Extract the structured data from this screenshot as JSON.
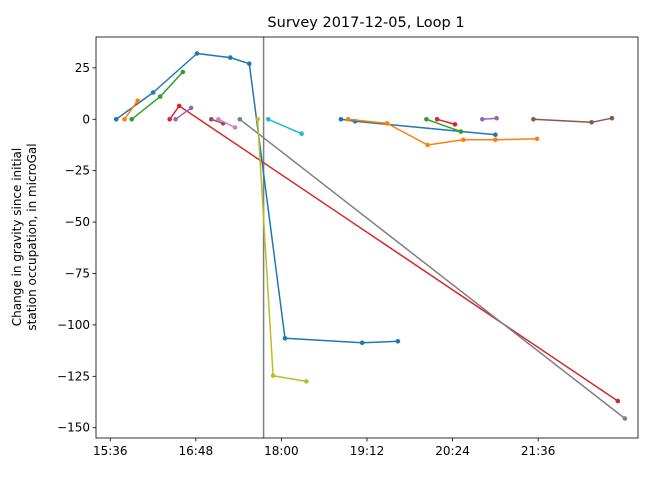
{
  "chart_data": {
    "type": "line",
    "title": "Survey 2017-12-05, Loop 1",
    "xlabel": "",
    "ylabel_lines": [
      "Change in gravity since initial",
      "station occupation, in microGal"
    ],
    "x_unit": "time of day (HH:MM)",
    "xlim": [
      "15:24",
      "23:00"
    ],
    "ylim": [
      -155,
      40
    ],
    "x_ticks": [
      "15:36",
      "16:48",
      "18:00",
      "19:12",
      "20:24",
      "21:36"
    ],
    "y_ticks": [
      25,
      0,
      -25,
      -50,
      -75,
      -100,
      -125,
      -150
    ],
    "grid": false,
    "legend": "none",
    "vertical_line": {
      "x": "17:45",
      "color": "#7f7f7f"
    },
    "series": [
      {
        "color": "#1f77b4",
        "points": [
          [
            "15:41",
            0
          ],
          [
            "16:12",
            13
          ],
          [
            "16:49",
            32
          ],
          [
            "17:17",
            30
          ],
          [
            "17:33",
            27
          ],
          [
            "18:03",
            -106.5
          ],
          [
            "19:08",
            -108.7
          ],
          [
            "19:38",
            -108
          ]
        ]
      },
      {
        "color": "#ff7f0e",
        "points": [
          [
            "15:48",
            0
          ],
          [
            "15:59",
            9
          ]
        ]
      },
      {
        "color": "#2ca02c",
        "points": [
          [
            "15:54",
            0
          ],
          [
            "16:18",
            11
          ],
          [
            "16:37",
            23
          ]
        ]
      },
      {
        "color": "#d62728",
        "points": [
          [
            "16:26",
            0
          ],
          [
            "16:34",
            6.5
          ],
          [
            "22:43",
            -137
          ]
        ]
      },
      {
        "color": "#9467bd",
        "points": [
          [
            "16:31",
            0
          ],
          [
            "16:44",
            5.5
          ]
        ]
      },
      {
        "color": "#8c564b",
        "points": [
          [
            "17:01",
            0
          ],
          [
            "17:11",
            -2
          ]
        ]
      },
      {
        "color": "#e377c2",
        "points": [
          [
            "17:07",
            0
          ],
          [
            "17:21",
            -4
          ]
        ]
      },
      {
        "color": "#7f7f7f",
        "points": [
          [
            "17:25",
            0
          ],
          [
            "22:49",
            -145.5
          ]
        ]
      },
      {
        "color": "#bcbd22",
        "points": [
          [
            "17:40",
            0
          ],
          [
            "17:53",
            -124.7
          ],
          [
            "18:21",
            -127.5
          ]
        ]
      },
      {
        "color": "#17becf",
        "points": [
          [
            "17:49",
            0
          ],
          [
            "18:17",
            -7
          ]
        ]
      },
      {
        "color": "#1f77b4",
        "points": [
          [
            "18:50",
            0
          ],
          [
            "19:02",
            -1
          ],
          [
            "21:00",
            -7.5
          ]
        ]
      },
      {
        "color": "#ff7f0e",
        "points": [
          [
            "18:56",
            0
          ],
          [
            "19:29",
            -2
          ],
          [
            "20:03",
            -12.5
          ],
          [
            "20:33",
            -10
          ],
          [
            "21:00",
            -10
          ],
          [
            "21:35",
            -9.5
          ]
        ]
      },
      {
        "color": "#2ca02c",
        "points": [
          [
            "20:02",
            0
          ],
          [
            "20:31",
            -6
          ]
        ]
      },
      {
        "color": "#d62728",
        "points": [
          [
            "20:11",
            0
          ],
          [
            "20:26",
            -2.5
          ]
        ]
      },
      {
        "color": "#9467bd",
        "points": [
          [
            "20:49",
            0
          ],
          [
            "21:01",
            0.5
          ]
        ]
      },
      {
        "color": "#8c564b",
        "points": [
          [
            "21:32",
            0
          ],
          [
            "22:21",
            -1.5
          ],
          [
            "22:38",
            0.5
          ]
        ]
      }
    ]
  }
}
